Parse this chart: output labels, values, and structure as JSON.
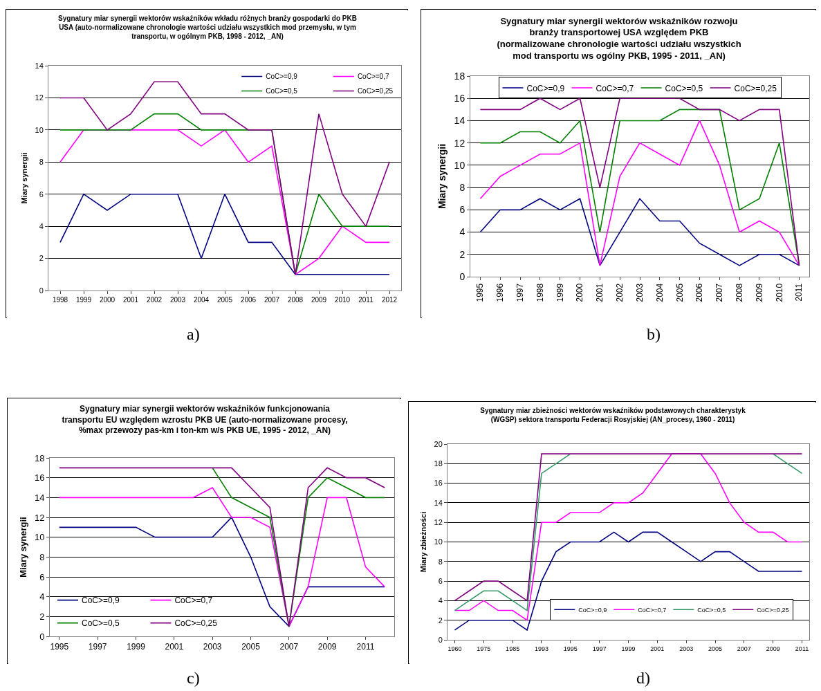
{
  "chart_data": [
    {
      "type": "line",
      "title": "Sygnatury miar synergii wektorów wskaźników wkładu różnych branży gospodarki do PKB\nUSA (auto-normalizowane chronologie wartości udziału wszystkich mod przemysłu, w tym\ntransportu, w ogólnym PKB, 1998 - 2012, _AN)",
      "ylabel": "Miary synergii",
      "annotations": [
        "a)"
      ],
      "categories": [
        "1998",
        "1999",
        "2000",
        "2001",
        "2002",
        "2003",
        "2004",
        "2005",
        "2006",
        "2007",
        "2008",
        "2009",
        "2010",
        "2011",
        "2012"
      ],
      "series": [
        {
          "name": "CoC>=0,9",
          "color": "#000080",
          "values": [
            3,
            6,
            5,
            6,
            6,
            6,
            2,
            6,
            3,
            3,
            1,
            1,
            1,
            1,
            1
          ]
        },
        {
          "name": "CoC>=0,7",
          "color": "#ff00ff",
          "values": [
            8,
            10,
            10,
            10,
            10,
            10,
            9,
            10,
            8,
            9,
            1,
            2,
            4,
            3,
            3
          ]
        },
        {
          "name": "CoC>=0,5",
          "color": "#008000",
          "values": [
            10,
            10,
            10,
            10,
            11,
            11,
            10,
            10,
            10,
            10,
            1,
            6,
            4,
            4,
            4
          ]
        },
        {
          "name": "CoC>=0,25",
          "color": "#800080",
          "values": [
            12,
            12,
            10,
            11,
            13,
            13,
            11,
            11,
            10,
            10,
            1,
            11,
            6,
            4,
            8
          ]
        }
      ],
      "ylim": [
        0,
        14
      ],
      "yticks": [
        0,
        2,
        4,
        6,
        8,
        10,
        12,
        14
      ],
      "grid": "y",
      "legend": "top right",
      "marker": "none",
      "line_style": "solid"
    },
    {
      "type": "line",
      "title": "Sygnatury miar synergii wektorów wskaźników rozwoju\nbranży transportowej USA względem PKB\n(normalizowane chronologie wartości udziału wszystkich\nmod transportu ws ogólny PKB, 1995 - 2011, _AN)",
      "ylabel": "Miary synergii",
      "annotations": [
        "b)"
      ],
      "categories": [
        "1995",
        "1996",
        "1997",
        "1998",
        "1999",
        "2000",
        "2001",
        "2002",
        "2003",
        "2004",
        "2005",
        "2006",
        "2007",
        "2008",
        "2009",
        "2010",
        "2011"
      ],
      "series": [
        {
          "name": "CoC>=0,9",
          "color": "#000080",
          "values": [
            4,
            6,
            6,
            7,
            6,
            7,
            1,
            4,
            7,
            5,
            5,
            3,
            2,
            1,
            2,
            2,
            1
          ]
        },
        {
          "name": "CoC>=0,7",
          "color": "#ff00ff",
          "values": [
            7,
            9,
            10,
            11,
            11,
            12,
            1,
            9,
            12,
            11,
            10,
            14,
            10,
            4,
            5,
            4,
            1
          ]
        },
        {
          "name": "CoC>=0,5",
          "color": "#008000",
          "values": [
            12,
            12,
            13,
            13,
            12,
            14,
            4,
            14,
            14,
            14,
            15,
            15,
            15,
            6,
            7,
            12,
            1
          ]
        },
        {
          "name": "CoC>=0,25",
          "color": "#800080",
          "values": [
            15,
            15,
            15,
            16,
            15,
            16,
            8,
            16,
            16,
            16,
            16,
            15,
            15,
            14,
            15,
            15,
            1
          ]
        }
      ],
      "ylim": [
        0,
        18
      ],
      "yticks": [
        0,
        2,
        4,
        6,
        8,
        10,
        12,
        14,
        16,
        18
      ],
      "grid": "y",
      "legend": "top",
      "marker": "none",
      "line_style": "solid"
    },
    {
      "type": "line",
      "title": "Sygnatury miar synergii wektorów wskaźników funkcjonowania\ntransportu EU względem wzrostu PKB UE (auto-normalizowane procesy,\n%max przewozy pas-km i ton-km w/s PKB UE, 1995 - 2012, _AN)",
      "ylabel": "Miary synergii",
      "annotations": [
        "c)"
      ],
      "categories": [
        "1995",
        null,
        "1997",
        null,
        "1999",
        null,
        "2001",
        null,
        "2003",
        null,
        "2005",
        null,
        "2007",
        null,
        "2009",
        null,
        "2011",
        null
      ],
      "series": [
        {
          "name": "CoC>=0,9",
          "color": "#000080",
          "values": [
            11,
            11,
            11,
            11,
            11,
            10,
            10,
            10,
            10,
            12,
            8,
            3,
            1,
            5,
            5,
            5,
            5,
            5
          ]
        },
        {
          "name": "CoC>=0,7",
          "color": "#ff00ff",
          "values": [
            14,
            14,
            14,
            14,
            14,
            14,
            14,
            14,
            15,
            12,
            12,
            11,
            1,
            5,
            14,
            14,
            7,
            5
          ]
        },
        {
          "name": "CoC>=0,5",
          "color": "#008000",
          "values": [
            null,
            null,
            null,
            null,
            null,
            null,
            null,
            null,
            17,
            14,
            13,
            12,
            1,
            14,
            16,
            15,
            14,
            14
          ]
        },
        {
          "name": "CoC>=0,25",
          "color": "#800080",
          "values": [
            17,
            17,
            17,
            17,
            17,
            17,
            17,
            17,
            17,
            17,
            15,
            13,
            1,
            15,
            17,
            16,
            16,
            15
          ]
        }
      ],
      "ylim": [
        0,
        18
      ],
      "yticks": [
        0,
        2,
        4,
        6,
        8,
        10,
        12,
        14,
        16,
        18
      ],
      "grid": "y",
      "legend": "bottom left",
      "marker": "none",
      "line_style": "solid"
    },
    {
      "type": "line",
      "title": "Sygnatury miar zbieżności wektorów wskaźników podstawowych charakterystyk\n(WGSP) sektora transportu Federacji Rosyjskiej (AN_procesy, 1960 - 2011)",
      "ylabel": "Miary zbieżności",
      "annotations": [
        "d)"
      ],
      "categories": [
        "1960",
        null,
        "1975",
        null,
        "1985",
        null,
        "1993",
        null,
        "1995",
        null,
        "1997",
        null,
        "1999",
        null,
        "2001",
        null,
        "2003",
        null,
        "2005",
        null,
        "2007",
        null,
        "2009",
        null,
        "2011"
      ],
      "series": [
        {
          "name": "CoC>=0,9",
          "color": "#000080",
          "values": [
            1,
            2,
            2,
            2,
            2,
            1,
            6,
            9,
            10,
            10,
            10,
            11,
            10,
            11,
            11,
            10,
            9,
            8,
            9,
            9,
            8,
            7,
            7,
            7,
            7
          ]
        },
        {
          "name": "CoC>=0,7",
          "color": "#ff00ff",
          "values": [
            3,
            3,
            4,
            3,
            3,
            2,
            12,
            12,
            13,
            13,
            13,
            14,
            14,
            15,
            17,
            19,
            19,
            19,
            17,
            14,
            12,
            11,
            11,
            10,
            10
          ]
        },
        {
          "name": "CoC>=0,5",
          "color": "#339966",
          "values": [
            3,
            4,
            5,
            5,
            4,
            3,
            17,
            18,
            19,
            null,
            null,
            null,
            null,
            null,
            null,
            null,
            null,
            null,
            null,
            null,
            null,
            null,
            19,
            18,
            17
          ]
        },
        {
          "name": "CoC>=0,25",
          "color": "#800080",
          "values": [
            4,
            5,
            6,
            6,
            5,
            4,
            19,
            19,
            19,
            19,
            19,
            19,
            19,
            19,
            19,
            19,
            19,
            19,
            19,
            19,
            19,
            19,
            19,
            19,
            19
          ]
        }
      ],
      "ylim": [
        0,
        20
      ],
      "yticks": [
        0,
        2,
        4,
        6,
        8,
        10,
        12,
        14,
        16,
        18,
        20
      ],
      "grid": "y",
      "legend": "bottom",
      "marker": "none",
      "line_style": "solid"
    }
  ]
}
